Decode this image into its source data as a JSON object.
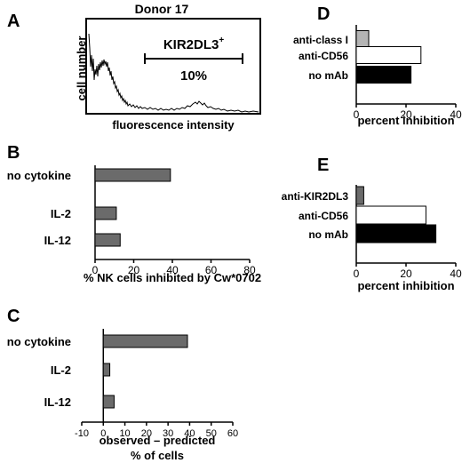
{
  "panels": {
    "A": {
      "letter": "A",
      "title": "Donor 17",
      "ylabel": "cell number",
      "xlabel": "fluorescence intensity",
      "gate_label": "KIR2DL3",
      "gate_label_sup": "+",
      "gate_percent": "10%"
    },
    "B": {
      "letter": "B"
    },
    "C": {
      "letter": "C"
    },
    "D": {
      "letter": "D"
    },
    "E": {
      "letter": "E"
    }
  },
  "chart_data": [
    {
      "panel": "A",
      "type": "area",
      "title": "Donor 17",
      "xlabel": "fluorescence intensity",
      "ylabel": "cell number",
      "annotations": [
        "KIR2DL3+",
        "10%"
      ],
      "series_shape": "histogram with main peak at low intensity and small secondary peak at high intensity; gated region labeled 10%"
    },
    {
      "panel": "B",
      "type": "bar",
      "orientation": "horizontal",
      "categories": [
        "no cytokine",
        "IL-2",
        "IL-12"
      ],
      "values": [
        39,
        11,
        13
      ],
      "xlabel": "% NK cells inhibited by Cw*0702",
      "xlim": [
        0,
        80
      ],
      "xticks": [
        0,
        20,
        40,
        60,
        80
      ],
      "colors": [
        "#6b6b6b",
        "#6b6b6b",
        "#6b6b6b"
      ]
    },
    {
      "panel": "C",
      "type": "bar",
      "orientation": "horizontal",
      "categories": [
        "no cytokine",
        "IL-2",
        "IL-12"
      ],
      "values": [
        39,
        3,
        5
      ],
      "xlabel": "observed – predicted",
      "xlabel2": "% of cells",
      "xlim": [
        -10,
        60
      ],
      "xticks": [
        -10,
        0,
        10,
        20,
        30,
        40,
        50,
        60
      ],
      "colors": [
        "#6b6b6b",
        "#6b6b6b",
        "#6b6b6b"
      ]
    },
    {
      "panel": "D",
      "type": "bar",
      "orientation": "horizontal",
      "categories": [
        "anti-class I",
        "anti-CD56",
        "no mAb"
      ],
      "values": [
        5,
        26,
        22
      ],
      "xlabel": "percent inhibition",
      "xlim": [
        0,
        40
      ],
      "xticks": [
        0,
        20,
        40
      ],
      "colors": [
        "#b4b4b4",
        "#ffffff",
        "#000000"
      ]
    },
    {
      "panel": "E",
      "type": "bar",
      "orientation": "horizontal",
      "categories": [
        "anti-KIR2DL3",
        "anti-CD56",
        "no mAb"
      ],
      "values": [
        3,
        28,
        32
      ],
      "xlabel": "percent inhibition",
      "xlim": [
        0,
        40
      ],
      "xticks": [
        0,
        20,
        40
      ],
      "colors": [
        "#6b6b6b",
        "#ffffff",
        "#000000"
      ]
    }
  ]
}
